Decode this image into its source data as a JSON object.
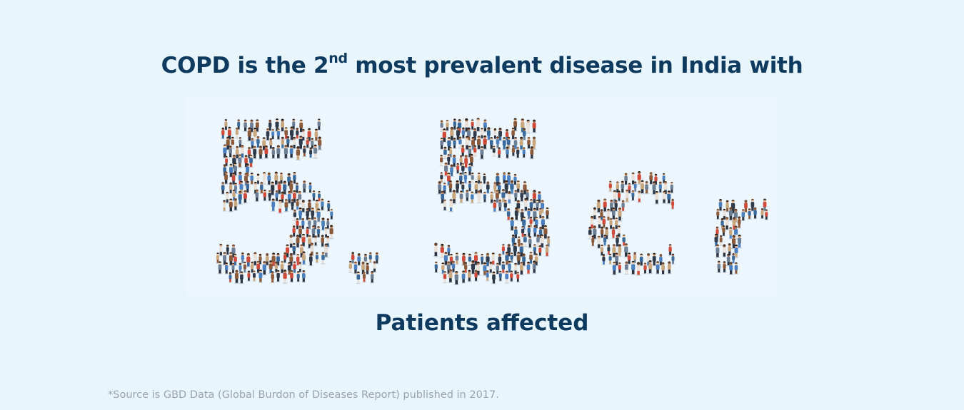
{
  "headline": {
    "before": "COPD is the 2",
    "superscript": "nd",
    "after": " most prevalent disease in India with"
  },
  "figure": {
    "number": "5.5",
    "unit": "cr",
    "style": "crowd of people forming the characters"
  },
  "subheading": "Patients affected",
  "footnote": "*Source is GBD Data (Global Burdon of Diseases Report) published in 2017.",
  "colors": {
    "background": "#e9f5fd",
    "heading": "#0f3a5f",
    "footnote": "#9aa3ad",
    "people": [
      "#2f3a4a",
      "#d04a3a",
      "#4a7fc0",
      "#c9a77e",
      "#8a5a3a",
      "#6d7f95",
      "#e8e2da",
      "#3a6a9c"
    ]
  }
}
